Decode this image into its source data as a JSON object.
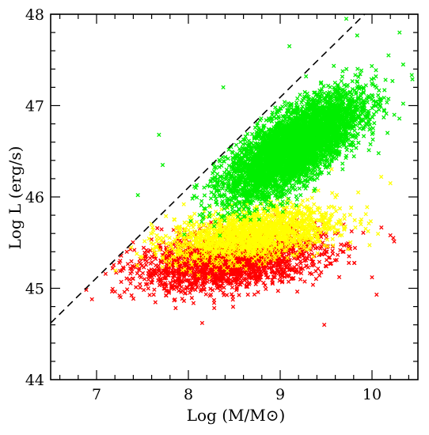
{
  "chart_data": {
    "type": "scatter",
    "xlabel": "Log (M/M⊙)",
    "ylabel": "Log L (erg/s)",
    "xlim": [
      6.5,
      10.5
    ],
    "ylim": [
      44,
      48
    ],
    "x_ticks": [
      "7",
      "8",
      "9",
      "10"
    ],
    "y_ticks": [
      "44",
      "45",
      "46",
      "47",
      "48"
    ],
    "grid": false,
    "legend": "none",
    "marker": "x",
    "reference_line": {
      "style": "dashed",
      "color": "#000000",
      "points": [
        [
          6.5,
          44.62
        ],
        [
          9.92,
          48.0
        ]
      ]
    },
    "series": [
      {
        "color": "#ff0000",
        "count": 2200,
        "center": [
          8.45,
          45.3
        ],
        "spread": [
          0.5,
          0.16
        ],
        "correlation": 0.35,
        "outliers": [
          [
            6.95,
            44.88
          ],
          [
            7.25,
            44.92
          ],
          [
            8.15,
            44.62
          ],
          [
            9.48,
            44.6
          ],
          [
            10.0,
            45.12
          ],
          [
            10.05,
            44.93
          ],
          [
            9.75,
            45.35
          ],
          [
            10.2,
            45.58
          ]
        ]
      },
      {
        "color": "#ffff00",
        "count": 1700,
        "center": [
          8.7,
          45.6
        ],
        "spread": [
          0.45,
          0.15
        ],
        "correlation": 0.4,
        "outliers": [
          [
            7.95,
            45.92
          ],
          [
            7.85,
            45.75
          ],
          [
            10.2,
            46.15
          ],
          [
            10.1,
            46.22
          ],
          [
            9.85,
            46.05
          ]
        ]
      },
      {
        "color": "#00ee00",
        "count": 5200,
        "center": [
          9.15,
          46.55
        ],
        "spread": [
          0.36,
          0.28
        ],
        "correlation": 0.72,
        "outliers": [
          [
            7.45,
            46.02
          ],
          [
            7.72,
            46.35
          ],
          [
            7.68,
            46.68
          ],
          [
            8.25,
            46.05
          ],
          [
            9.72,
            47.95
          ],
          [
            10.3,
            47.8
          ],
          [
            10.18,
            47.55
          ],
          [
            8.38,
            47.2
          ],
          [
            9.1,
            47.65
          ]
        ]
      }
    ]
  }
}
